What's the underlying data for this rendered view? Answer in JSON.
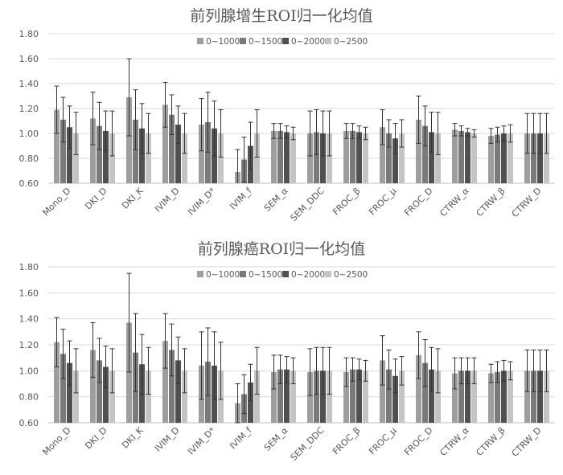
{
  "chart_data": [
    {
      "type": "bar",
      "title": "前列腺增生ROI归一化均值",
      "categories": [
        "Mono_D",
        "DKI_D",
        "DKI_K",
        "IVIM_D",
        "IVIM_D*",
        "IVIM_f",
        "SEM_α",
        "SEM_DDC",
        "FROC_β",
        "FROC_μ",
        "FROC_D",
        "CTRW_α",
        "CTRW_β",
        "CTRW_D"
      ],
      "ylim": [
        0.6,
        1.8
      ],
      "yticks": [
        "0.60",
        "0.80",
        "1.00",
        "1.20",
        "1.40",
        "1.60",
        "1.80"
      ],
      "grid": true,
      "legend_position": "top",
      "series": [
        {
          "name": "0~1000",
          "color": "#9e9e9e",
          "values": [
            1.19,
            1.12,
            1.29,
            1.23,
            1.07,
            0.69,
            1.02,
            1.0,
            1.02,
            1.05,
            1.11,
            1.03,
            0.98,
            1.0
          ],
          "errors": [
            0.19,
            0.21,
            0.31,
            0.18,
            0.21,
            0.18,
            0.06,
            0.18,
            0.06,
            0.14,
            0.19,
            0.05,
            0.06,
            0.16
          ]
        },
        {
          "name": "0~1500",
          "color": "#7a7a7a",
          "values": [
            1.11,
            1.06,
            1.11,
            1.15,
            1.09,
            0.79,
            1.02,
            1.01,
            1.02,
            1.0,
            1.06,
            1.02,
            0.99,
            1.0
          ],
          "errors": [
            0.18,
            0.19,
            0.24,
            0.16,
            0.24,
            0.18,
            0.06,
            0.18,
            0.06,
            0.11,
            0.16,
            0.04,
            0.06,
            0.16
          ]
        },
        {
          "name": "0~2000",
          "color": "#505050",
          "values": [
            1.05,
            1.02,
            1.04,
            1.07,
            1.04,
            0.9,
            1.01,
            1.0,
            1.01,
            0.96,
            1.01,
            1.01,
            1.0,
            1.0
          ],
          "errors": [
            0.17,
            0.16,
            0.2,
            0.15,
            0.22,
            0.19,
            0.05,
            0.18,
            0.05,
            0.12,
            0.16,
            0.03,
            0.06,
            0.16
          ]
        },
        {
          "name": "0~2500",
          "color": "#c4c4c4",
          "values": [
            1.0,
            1.0,
            1.0,
            1.0,
            1.0,
            1.0,
            1.0,
            1.0,
            1.0,
            1.0,
            1.0,
            1.0,
            1.0,
            1.0
          ],
          "errors": [
            0.17,
            0.18,
            0.16,
            0.16,
            0.19,
            0.19,
            0.05,
            0.18,
            0.05,
            0.11,
            0.17,
            0.03,
            0.07,
            0.16
          ]
        }
      ]
    },
    {
      "type": "bar",
      "title": "前列腺癌ROI归一化均值",
      "categories": [
        "Mono_D",
        "DKI_D",
        "DKI_K",
        "IVIM_D",
        "IVIM_D*",
        "IVIM_f",
        "SEM_α",
        "SEM_DDC",
        "FROC_β",
        "FROC_μ",
        "FROC_D",
        "CTRW_α",
        "CTRW_β",
        "CTRW_D"
      ],
      "ylim": [
        0.6,
        1.8
      ],
      "yticks": [
        "0.60",
        "0.80",
        "1.00",
        "1.20",
        "1.40",
        "1.60",
        "1.80"
      ],
      "grid": true,
      "legend_position": "top",
      "series": [
        {
          "name": "0~1000",
          "color": "#9e9e9e",
          "values": [
            1.22,
            1.16,
            1.37,
            1.23,
            1.04,
            0.75,
            0.99,
            0.99,
            0.99,
            1.08,
            1.12,
            0.98,
            0.98,
            1.0
          ],
          "errors": [
            0.19,
            0.21,
            0.38,
            0.21,
            0.26,
            0.15,
            0.13,
            0.18,
            0.11,
            0.19,
            0.18,
            0.12,
            0.07,
            0.16
          ]
        },
        {
          "name": "0~1500",
          "color": "#7a7a7a",
          "values": [
            1.13,
            1.08,
            1.14,
            1.16,
            1.07,
            0.82,
            1.01,
            1.0,
            1.01,
            1.01,
            1.06,
            1.0,
            0.99,
            1.0
          ],
          "errors": [
            0.19,
            0.17,
            0.3,
            0.2,
            0.26,
            0.15,
            0.11,
            0.18,
            0.09,
            0.15,
            0.18,
            0.1,
            0.08,
            0.16
          ]
        },
        {
          "name": "0~2000",
          "color": "#505050",
          "values": [
            1.06,
            1.03,
            1.05,
            1.08,
            1.04,
            0.91,
            1.01,
            1.0,
            1.01,
            0.96,
            1.01,
            1.0,
            1.0,
            1.0
          ],
          "errors": [
            0.17,
            0.16,
            0.23,
            0.18,
            0.26,
            0.14,
            0.1,
            0.18,
            0.08,
            0.13,
            0.17,
            0.1,
            0.08,
            0.16
          ]
        },
        {
          "name": "0~2500",
          "color": "#c4c4c4",
          "values": [
            1.0,
            1.0,
            1.0,
            1.0,
            1.0,
            1.0,
            1.0,
            1.0,
            1.0,
            1.0,
            1.0,
            1.0,
            1.0,
            1.0
          ],
          "errors": [
            0.17,
            0.17,
            0.18,
            0.17,
            0.22,
            0.18,
            0.1,
            0.18,
            0.08,
            0.11,
            0.17,
            0.1,
            0.07,
            0.16
          ]
        }
      ]
    }
  ]
}
